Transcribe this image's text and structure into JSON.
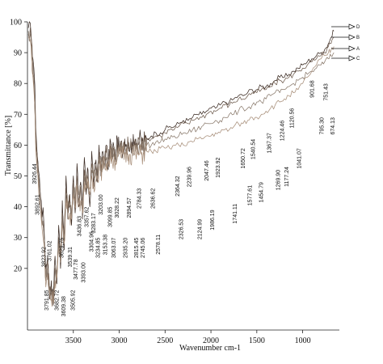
{
  "chart_data": {
    "type": "line",
    "title": "",
    "xlabel": "Wavenumber cm-1",
    "ylabel": "Transmittance [%]",
    "xlim": [
      4000,
      600
    ],
    "ylim": [
      0,
      100
    ],
    "x_reversed": true,
    "x_ticks": [
      {
        "value": 3500,
        "label": "3500"
      },
      {
        "value": 3000,
        "label": "3000"
      },
      {
        "value": 2500,
        "label": "2500"
      },
      {
        "value": 2000,
        "label": "2000"
      },
      {
        "value": 1500,
        "label": "1500"
      },
      {
        "value": 1000,
        "label": "1000"
      }
    ],
    "y_ticks": [
      {
        "value": 100,
        "label": "100"
      },
      {
        "value": 90,
        "label": "90"
      },
      {
        "value": 80,
        "label": "80"
      },
      {
        "value": 70,
        "label": "70"
      },
      {
        "value": 60,
        "label": "60"
      },
      {
        "value": 50,
        "label": "50"
      },
      {
        "value": 40,
        "label": "40"
      },
      {
        "value": 30,
        "label": "30"
      },
      {
        "value": 20,
        "label": "20"
      }
    ],
    "legend": [
      "D",
      "B",
      "A",
      "C"
    ],
    "series_colors": [
      "#3a2a22",
      "#6d5a4c",
      "#8a7a6c",
      "#a88f7a"
    ],
    "series": [
      {
        "name": "D",
        "x": [
          3990,
          3960,
          3930,
          3900,
          3880,
          3850,
          3820,
          3800,
          3780,
          3760,
          3740,
          3720,
          3700,
          3680,
          3660,
          3640,
          3620,
          3600,
          3580,
          3560,
          3540,
          3520,
          3500,
          3480,
          3460,
          3440,
          3420,
          3400,
          3380,
          3360,
          3340,
          3320,
          3300,
          3280,
          3260,
          3240,
          3220,
          3200,
          3180,
          3160,
          3140,
          3120,
          3100,
          3080,
          3060,
          3040,
          3020,
          3000,
          2980,
          2960,
          2940,
          2920,
          2900,
          2880,
          2860,
          2840,
          2820,
          2800,
          2780,
          2760,
          2740,
          2720,
          2700,
          2650,
          2600,
          2550,
          2500,
          2450,
          2400,
          2350,
          2300,
          2250,
          2200,
          2150,
          2100,
          2050,
          2000,
          1950,
          1900,
          1850,
          1800,
          1750,
          1700,
          1650,
          1600,
          1550,
          1500,
          1450,
          1400,
          1350,
          1300,
          1250,
          1200,
          1150,
          1100,
          1050,
          1000,
          950,
          900,
          850,
          800,
          760,
          720,
          690,
          660
        ],
        "y": [
          98,
          96,
          85,
          60,
          52,
          42,
          34,
          20,
          24,
          10,
          16,
          8,
          24,
          15,
          34,
          20,
          42,
          26,
          50,
          36,
          44,
          34,
          50,
          38,
          54,
          40,
          48,
          36,
          56,
          44,
          52,
          40,
          58,
          46,
          54,
          48,
          60,
          50,
          58,
          54,
          60,
          52,
          62,
          56,
          60,
          55,
          62,
          58,
          60,
          58,
          62,
          60,
          61,
          59,
          61,
          60,
          62,
          60,
          62,
          61,
          61,
          62,
          62,
          63,
          64,
          64,
          65,
          66,
          66,
          67,
          68,
          68,
          69,
          70,
          70,
          71,
          72,
          72,
          73,
          74,
          74,
          75,
          76,
          76,
          77,
          78,
          78,
          79,
          79,
          80,
          81,
          82,
          82,
          83,
          84,
          85,
          86,
          87,
          88,
          89,
          90,
          91,
          93,
          95,
          97
        ]
      },
      {
        "name": "B",
        "x": [
          3990,
          3960,
          3930,
          3900,
          3880,
          3850,
          3820,
          3800,
          3780,
          3760,
          3740,
          3720,
          3700,
          3680,
          3660,
          3640,
          3620,
          3600,
          3580,
          3560,
          3540,
          3520,
          3500,
          3480,
          3460,
          3440,
          3420,
          3400,
          3380,
          3360,
          3340,
          3320,
          3300,
          3280,
          3260,
          3240,
          3220,
          3200,
          3180,
          3160,
          3140,
          3120,
          3100,
          3080,
          3060,
          3040,
          3020,
          3000,
          2980,
          2960,
          2940,
          2920,
          2900,
          2880,
          2860,
          2840,
          2820,
          2800,
          2780,
          2760,
          2740,
          2720,
          2700,
          2650,
          2600,
          2550,
          2500,
          2450,
          2400,
          2350,
          2300,
          2250,
          2200,
          2150,
          2100,
          2050,
          2000,
          1950,
          1900,
          1850,
          1800,
          1750,
          1700,
          1650,
          1600,
          1550,
          1500,
          1450,
          1400,
          1350,
          1300,
          1250,
          1200,
          1150,
          1100,
          1050,
          1000,
          950,
          900,
          850,
          800,
          760,
          720,
          690,
          660
        ],
        "y": [
          97,
          95,
          82,
          58,
          50,
          40,
          32,
          18,
          22,
          12,
          14,
          10,
          20,
          17,
          30,
          22,
          38,
          28,
          46,
          38,
          42,
          36,
          48,
          40,
          50,
          42,
          46,
          38,
          52,
          46,
          50,
          44,
          54,
          48,
          52,
          50,
          56,
          52,
          56,
          55,
          58,
          54,
          60,
          57,
          59,
          56,
          60,
          58,
          59,
          58,
          60,
          59,
          60,
          59,
          60,
          60,
          61,
          60,
          61,
          61,
          61,
          61,
          62,
          62,
          63,
          63,
          64,
          65,
          65,
          66,
          67,
          67,
          68,
          69,
          69,
          70,
          71,
          71,
          72,
          73,
          73,
          74,
          75,
          75,
          76,
          77,
          77,
          78,
          78,
          79,
          80,
          81,
          81,
          82,
          83,
          84,
          85,
          86,
          87,
          88,
          89,
          90,
          92,
          93,
          95
        ]
      },
      {
        "name": "A",
        "x": [
          3990,
          3960,
          3930,
          3900,
          3880,
          3850,
          3820,
          3800,
          3780,
          3760,
          3740,
          3720,
          3700,
          3680,
          3660,
          3640,
          3620,
          3600,
          3580,
          3560,
          3540,
          3520,
          3500,
          3480,
          3460,
          3440,
          3420,
          3400,
          3380,
          3360,
          3340,
          3320,
          3300,
          3280,
          3260,
          3240,
          3220,
          3200,
          3180,
          3160,
          3140,
          3120,
          3100,
          3080,
          3060,
          3040,
          3020,
          3000,
          2980,
          2960,
          2940,
          2920,
          2900,
          2880,
          2860,
          2840,
          2820,
          2800,
          2780,
          2760,
          2740,
          2720,
          2700,
          2650,
          2600,
          2550,
          2500,
          2450,
          2400,
          2350,
          2300,
          2250,
          2200,
          2150,
          2100,
          2050,
          2000,
          1950,
          1900,
          1850,
          1800,
          1750,
          1700,
          1650,
          1600,
          1550,
          1500,
          1450,
          1400,
          1350,
          1300,
          1250,
          1200,
          1150,
          1100,
          1050,
          1000,
          950,
          900,
          850,
          800,
          760,
          720,
          690,
          660
        ],
        "y": [
          96,
          94,
          80,
          56,
          48,
          38,
          30,
          16,
          20,
          14,
          12,
          12,
          18,
          19,
          28,
          24,
          36,
          30,
          44,
          40,
          40,
          38,
          46,
          42,
          48,
          44,
          44,
          40,
          50,
          48,
          48,
          46,
          52,
          50,
          50,
          52,
          54,
          54,
          54,
          56,
          56,
          56,
          58,
          58,
          57,
          57,
          58,
          59,
          58,
          59,
          59,
          59,
          59,
          59,
          59,
          60,
          60,
          60,
          60,
          60,
          60,
          60,
          60,
          60,
          61,
          61,
          62,
          62,
          63,
          63,
          64,
          64,
          65,
          65,
          66,
          67,
          67,
          68,
          68,
          69,
          70,
          70,
          71,
          72,
          72,
          73,
          74,
          74,
          75,
          76,
          77,
          77,
          78,
          79,
          80,
          81,
          82,
          83,
          84,
          85,
          86,
          87,
          88,
          89,
          90
        ]
      },
      {
        "name": "C",
        "x": [
          3990,
          3960,
          3930,
          3900,
          3880,
          3850,
          3820,
          3800,
          3780,
          3760,
          3740,
          3720,
          3700,
          3680,
          3660,
          3640,
          3620,
          3600,
          3580,
          3560,
          3540,
          3520,
          3500,
          3480,
          3460,
          3440,
          3420,
          3400,
          3380,
          3360,
          3340,
          3320,
          3300,
          3280,
          3260,
          3240,
          3220,
          3200,
          3180,
          3160,
          3140,
          3120,
          3100,
          3080,
          3060,
          3040,
          3020,
          3000,
          2980,
          2960,
          2940,
          2920,
          2900,
          2880,
          2860,
          2840,
          2820,
          2800,
          2780,
          2760,
          2740,
          2720,
          2700,
          2650,
          2600,
          2550,
          2500,
          2450,
          2400,
          2350,
          2300,
          2250,
          2200,
          2150,
          2100,
          2050,
          2000,
          1950,
          1900,
          1850,
          1800,
          1750,
          1700,
          1650,
          1600,
          1550,
          1500,
          1450,
          1400,
          1350,
          1300,
          1250,
          1200,
          1150,
          1100,
          1050,
          1000,
          950,
          900,
          850,
          800,
          760,
          720,
          690,
          660
        ],
        "y": [
          95,
          92,
          78,
          54,
          46,
          36,
          28,
          14,
          18,
          12,
          10,
          10,
          16,
          17,
          26,
          22,
          34,
          28,
          42,
          38,
          38,
          36,
          44,
          40,
          46,
          42,
          42,
          38,
          48,
          46,
          46,
          44,
          50,
          48,
          48,
          50,
          52,
          52,
          52,
          54,
          54,
          54,
          56,
          56,
          55,
          55,
          56,
          57,
          56,
          57,
          57,
          57,
          57,
          57,
          57,
          57,
          57,
          57,
          57,
          57,
          57,
          58,
          58,
          58,
          58,
          59,
          59,
          59,
          60,
          60,
          60,
          61,
          61,
          62,
          62,
          63,
          63,
          64,
          64,
          65,
          65,
          66,
          67,
          67,
          68,
          69,
          69,
          70,
          71,
          72,
          73,
          74,
          75,
          76,
          77,
          78,
          80,
          82,
          84,
          86,
          88,
          89,
          90,
          91,
          92
        ]
      }
    ],
    "peak_labels": [
      {
        "wavenumber": 3926.44,
        "label": "3926.44",
        "y": 54
      },
      {
        "wavenumber": 3892.61,
        "label": "3892.61",
        "y": 44
      },
      {
        "wavenumber": 3823.92,
        "label": "3823.92",
        "y": 27
      },
      {
        "wavenumber": 3761.02,
        "label": "3761.02",
        "y": 29
      },
      {
        "wavenumber": 3791.85,
        "label": "3791.85",
        "y": 13
      },
      {
        "wavenumber": 3682.72,
        "label": "3682.72",
        "y": 13
      },
      {
        "wavenumber": 3629.75,
        "label": "3629.75",
        "y": 30
      },
      {
        "wavenumber": 3609.38,
        "label": "3609.38",
        "y": 11
      },
      {
        "wavenumber": 3539.31,
        "label": "3539.31",
        "y": 27
      },
      {
        "wavenumber": 3505.92,
        "label": "3505.92",
        "y": 13
      },
      {
        "wavenumber": 3477.78,
        "label": "3477.78",
        "y": 23
      },
      {
        "wavenumber": 3436.83,
        "label": "3436.83",
        "y": 37
      },
      {
        "wavenumber": 3393.0,
        "label": "3393.00",
        "y": 22
      },
      {
        "wavenumber": 3357.62,
        "label": "3357.62",
        "y": 40
      },
      {
        "wavenumber": 3304.96,
        "label": "3304.96",
        "y": 32
      },
      {
        "wavenumber": 3283.17,
        "label": "3283.17",
        "y": 38
      },
      {
        "wavenumber": 3234.85,
        "label": "3234.85",
        "y": 30
      },
      {
        "wavenumber": 3203.0,
        "label": "3203.00",
        "y": 44
      },
      {
        "wavenumber": 3153.38,
        "label": "3153.38",
        "y": 31
      },
      {
        "wavenumber": 3099.85,
        "label": "3099.85",
        "y": 40
      },
      {
        "wavenumber": 3063.07,
        "label": "3063.07",
        "y": 30
      },
      {
        "wavenumber": 3028.22,
        "label": "3028.22",
        "y": 43
      },
      {
        "wavenumber": 2935.2,
        "label": "2935.20",
        "y": 30
      },
      {
        "wavenumber": 2894.57,
        "label": "2894.57",
        "y": 43
      },
      {
        "wavenumber": 2815.45,
        "label": "2815.45",
        "y": 30
      },
      {
        "wavenumber": 2784.33,
        "label": "2784.33",
        "y": 46
      },
      {
        "wavenumber": 2745.06,
        "label": "2745.06",
        "y": 30
      },
      {
        "wavenumber": 2636.62,
        "label": "2636.62",
        "y": 46
      },
      {
        "wavenumber": 2578.11,
        "label": "2578.11",
        "y": 31
      },
      {
        "wavenumber": 2364.32,
        "label": "2364.32",
        "y": 50
      },
      {
        "wavenumber": 2326.53,
        "label": "2326.53",
        "y": 36
      },
      {
        "wavenumber": 2239.96,
        "label": "2239.96",
        "y": 53
      },
      {
        "wavenumber": 2124.99,
        "label": "2124.99",
        "y": 36
      },
      {
        "wavenumber": 2047.46,
        "label": "2047.46",
        "y": 55
      },
      {
        "wavenumber": 1986.19,
        "label": "1986.19",
        "y": 39
      },
      {
        "wavenumber": 1923.92,
        "label": "1923.92",
        "y": 56
      },
      {
        "wavenumber": 1741.11,
        "label": "1741.11",
        "y": 41
      },
      {
        "wavenumber": 1650.72,
        "label": "1650.72",
        "y": 59
      },
      {
        "wavenumber": 1577.61,
        "label": "1577.61",
        "y": 47
      },
      {
        "wavenumber": 1540.54,
        "label": "1540.54",
        "y": 62
      },
      {
        "wavenumber": 1454.79,
        "label": "1454.79",
        "y": 48
      },
      {
        "wavenumber": 1367.37,
        "label": "1367.37",
        "y": 64
      },
      {
        "wavenumber": 1269.9,
        "label": "1269.90",
        "y": 52
      },
      {
        "wavenumber": 1224.46,
        "label": "1224.46",
        "y": 68
      },
      {
        "wavenumber": 1177.24,
        "label": "1177.24",
        "y": 53
      },
      {
        "wavenumber": 1120.56,
        "label": "1120.56",
        "y": 72
      },
      {
        "wavenumber": 1041.07,
        "label": "1041.07",
        "y": 59
      },
      {
        "wavenumber": 901.68,
        "label": "901.68",
        "y": 81
      },
      {
        "wavenumber": 795.3,
        "label": "795.30",
        "y": 69
      },
      {
        "wavenumber": 751.43,
        "label": "751.43",
        "y": 80
      },
      {
        "wavenumber": 674.13,
        "label": "674.13",
        "y": 69
      }
    ]
  }
}
